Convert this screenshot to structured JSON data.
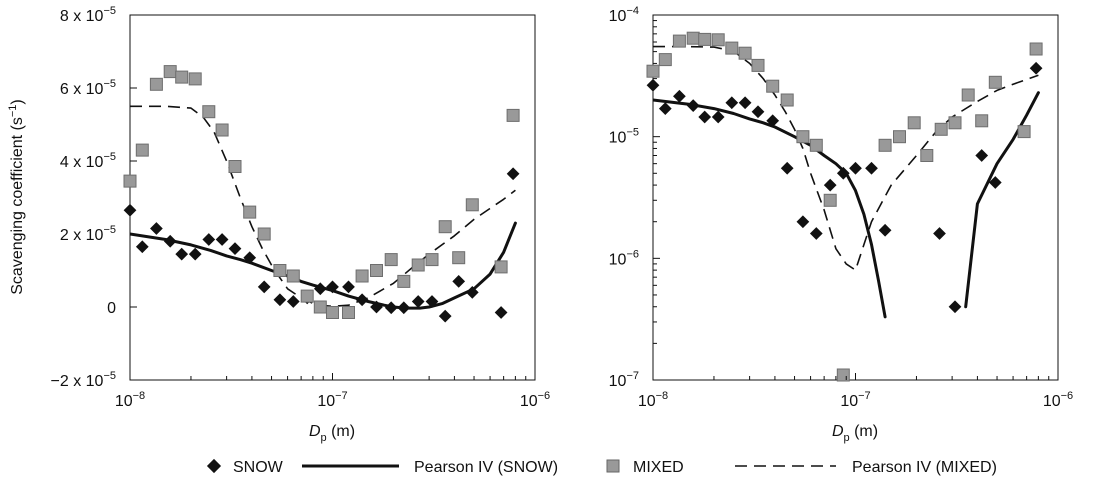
{
  "chart_data": [
    {
      "type": "scatter",
      "panel": "left",
      "x_scale": "log",
      "y_scale": "linear",
      "xlim": [
        1e-08,
        1e-06
      ],
      "ylim": [
        -2e-05,
        8e-05
      ],
      "grid": false,
      "ylabel_main": "Scavenging coefficient (s",
      "ylabel_sup": "−1",
      "ylabel_end": ")",
      "xlabel_main": "D",
      "xlabel_sub": "p",
      "xlabel_end": " (m)",
      "x_ticks": [
        {
          "value": 1e-08,
          "base": "10",
          "exp": "−8"
        },
        {
          "value": 1e-07,
          "base": "10",
          "exp": "−7"
        },
        {
          "value": 1e-06,
          "base": "10",
          "exp": "−6"
        }
      ],
      "y_ticks": [
        {
          "value": 8e-05,
          "base": "8 x 10",
          "exp": "−5"
        },
        {
          "value": 6e-05,
          "base": "6 x 10",
          "exp": "−5"
        },
        {
          "value": 4e-05,
          "base": "4 x 10",
          "exp": "−5"
        },
        {
          "value": 2e-05,
          "base": "2 x 10",
          "exp": "−5"
        },
        {
          "value": 0,
          "base": "0",
          "exp": ""
        },
        {
          "value": -2e-05,
          "base": "−2 x 10",
          "exp": "−5"
        }
      ],
      "series": [
        {
          "name": "SNOW",
          "kind": "markers",
          "marker": "diamond",
          "color": "#111111",
          "x": [
            1e-08,
            1.15e-08,
            1.35e-08,
            1.58e-08,
            1.8e-08,
            2.1e-08,
            2.45e-08,
            2.85e-08,
            3.3e-08,
            3.9e-08,
            4.6e-08,
            5.5e-08,
            6.4e-08,
            7.5e-08,
            8.7e-08,
            1e-07,
            1.2e-07,
            1.4e-07,
            1.65e-07,
            1.95e-07,
            2.25e-07,
            2.65e-07,
            3.1e-07,
            3.6e-07,
            4.2e-07,
            4.9e-07,
            6.8e-07,
            7.8e-07
          ],
          "y": [
            2.65e-05,
            1.65e-05,
            2.15e-05,
            1.8e-05,
            1.45e-05,
            1.45e-05,
            1.85e-05,
            1.85e-05,
            1.6e-05,
            1.35e-05,
            5.5e-06,
            2e-06,
            1.5e-06,
            2.5e-06,
            5e-06,
            5.5e-06,
            5.5e-06,
            2e-06,
            0,
            -2e-07,
            -2e-07,
            1.5e-06,
            1.5e-06,
            -2.5e-06,
            7e-06,
            4e-06,
            -1.5e-06,
            3.65e-05
          ]
        },
        {
          "name": "Pearson IV (SNOW)",
          "kind": "line",
          "style": "solid",
          "color": "#111111",
          "x": [
            1e-08,
            1.5e-08,
            2e-08,
            2.5e-08,
            3e-08,
            3.5e-08,
            4e-08,
            5e-08,
            6e-08,
            7e-08,
            8e-08,
            1e-07,
            1.2e-07,
            1.5e-07,
            1.8e-07,
            2e-07,
            2.3e-07,
            2.7e-07,
            3e-07,
            3.5e-07,
            4e-07,
            5e-07,
            6e-07,
            7e-07,
            8e-07
          ],
          "y": [
            2e-05,
            1.85e-05,
            1.7e-05,
            1.55e-05,
            1.4e-05,
            1.3e-05,
            1.2e-05,
            1e-05,
            8.5e-06,
            7e-06,
            6e-06,
            4.5e-06,
            3e-06,
            1.5e-06,
            5e-07,
            0,
            -3e-07,
            -3e-07,
            0,
            1e-06,
            2.5e-06,
            5e-06,
            9e-06,
            1.5e-05,
            2.3e-05
          ]
        },
        {
          "name": "MIXED",
          "kind": "markers",
          "marker": "square",
          "color": "#999999",
          "x": [
            1e-08,
            1.15e-08,
            1.35e-08,
            1.58e-08,
            1.8e-08,
            2.1e-08,
            2.45e-08,
            2.85e-08,
            3.3e-08,
            3.9e-08,
            4.6e-08,
            5.5e-08,
            6.4e-08,
            7.5e-08,
            8.7e-08,
            1e-07,
            1.2e-07,
            1.4e-07,
            1.65e-07,
            1.95e-07,
            2.25e-07,
            2.65e-07,
            3.1e-07,
            3.6e-07,
            4.2e-07,
            4.9e-07,
            6.8e-07,
            7.8e-07
          ],
          "y": [
            3.45e-05,
            4.3e-05,
            6.1e-05,
            6.45e-05,
            6.3e-05,
            6.25e-05,
            5.35e-05,
            4.85e-05,
            3.85e-05,
            2.6e-05,
            2e-05,
            1e-05,
            8.5e-06,
            3e-06,
            0,
            -1.5e-06,
            -1.5e-06,
            8.5e-06,
            1e-05,
            1.3e-05,
            7e-06,
            1.15e-05,
            1.3e-05,
            2.2e-05,
            1.35e-05,
            2.8e-05,
            1.1e-05,
            5.25e-05
          ]
        },
        {
          "name": "Pearson IV (MIXED)",
          "kind": "line",
          "style": "dashed",
          "color": "#111111",
          "x": [
            1e-08,
            1.5e-08,
            2e-08,
            2.3e-08,
            2.6e-08,
            3e-08,
            3.5e-08,
            4e-08,
            4.5e-08,
            5e-08,
            5.5e-08,
            6e-08,
            7e-08,
            8e-08,
            9e-08,
            1e-07,
            1.2e-07,
            1.5e-07,
            2e-07,
            2.5e-07,
            3e-07,
            4e-07,
            5e-07,
            6e-07,
            7e-07,
            8e-07
          ],
          "y": [
            5.5e-05,
            5.5e-05,
            5.45e-05,
            5.2e-05,
            4.8e-05,
            4e-05,
            3e-05,
            2.2e-05,
            1.6e-05,
            1.15e-05,
            8e-06,
            5e-06,
            2.5e-06,
            1e-06,
            4e-07,
            2e-07,
            5e-07,
            2.5e-06,
            6.5e-06,
            1.1e-05,
            1.45e-05,
            1.95e-05,
            2.4e-05,
            2.7e-05,
            2.95e-05,
            3.2e-05
          ]
        }
      ]
    },
    {
      "type": "scatter",
      "panel": "right",
      "x_scale": "log",
      "y_scale": "log",
      "xlim": [
        1e-08,
        1e-06
      ],
      "ylim": [
        1e-07,
        0.0001
      ],
      "grid": false,
      "xlabel_main": "D",
      "xlabel_sub": "p",
      "xlabel_end": " (m)",
      "x_ticks": [
        {
          "value": 1e-08,
          "base": "10",
          "exp": "−8"
        },
        {
          "value": 1e-07,
          "base": "10",
          "exp": "−7"
        },
        {
          "value": 1e-06,
          "base": "10",
          "exp": "−6"
        }
      ],
      "y_ticks": [
        {
          "value": 0.0001,
          "base": "10",
          "exp": "−4"
        },
        {
          "value": 1e-05,
          "base": "10",
          "exp": "−5"
        },
        {
          "value": 1e-06,
          "base": "10",
          "exp": "−6"
        },
        {
          "value": 1e-07,
          "base": "10",
          "exp": "−7"
        }
      ],
      "series": [
        {
          "name": "SNOW",
          "kind": "markers",
          "marker": "diamond",
          "color": "#111111",
          "x": [
            1e-08,
            1.15e-08,
            1.35e-08,
            1.58e-08,
            1.8e-08,
            2.1e-08,
            2.45e-08,
            2.85e-08,
            3.3e-08,
            3.9e-08,
            4.6e-08,
            5.5e-08,
            6.4e-08,
            7.5e-08,
            8.7e-08,
            1e-07,
            1.2e-07,
            1.4e-07,
            2.6e-07,
            3.1e-07,
            4.2e-07,
            4.9e-07,
            7.8e-07
          ],
          "y": [
            2.65e-05,
            1.7e-05,
            2.15e-05,
            1.8e-05,
            1.45e-05,
            1.45e-05,
            1.9e-05,
            1.9e-05,
            1.6e-05,
            1.35e-05,
            5.5e-06,
            2e-06,
            1.6e-06,
            4e-06,
            5e-06,
            5.5e-06,
            5.5e-06,
            1.7e-06,
            1.6e-06,
            4e-07,
            7e-06,
            4.2e-06,
            3.65e-05
          ]
        },
        {
          "name": "Pearson IV (SNOW)",
          "kind": "line",
          "style": "solid",
          "color": "#111111",
          "segments": [
            {
              "x": [
                1e-08,
                1.5e-08,
                2e-08,
                2.5e-08,
                3e-08,
                3.5e-08,
                4e-08,
                5e-08,
                6e-08,
                7e-08,
                8e-08,
                9e-08,
                1e-07,
                1.1e-07,
                1.2e-07,
                1.3e-07,
                1.4e-07
              ],
              "y": [
                2e-05,
                1.85e-05,
                1.7e-05,
                1.55e-05,
                1.4e-05,
                1.3e-05,
                1.2e-05,
                1e-05,
                8.5e-06,
                7e-06,
                6e-06,
                5e-06,
                3.6e-06,
                2.3e-06,
                1.3e-06,
                6.5e-07,
                3.3e-07
              ]
            },
            {
              "x": [
                3.5e-07,
                4e-07,
                5e-07,
                6e-07,
                7e-07,
                8e-07
              ],
              "y": [
                4e-07,
                2.8e-06,
                6e-06,
                9.5e-06,
                1.5e-05,
                2.3e-05
              ]
            }
          ]
        },
        {
          "name": "MIXED",
          "kind": "markers",
          "marker": "square",
          "color": "#999999",
          "x": [
            1e-08,
            1.15e-08,
            1.35e-08,
            1.58e-08,
            1.8e-08,
            2.1e-08,
            2.45e-08,
            2.85e-08,
            3.3e-08,
            3.9e-08,
            4.6e-08,
            5.5e-08,
            6.4e-08,
            7.5e-08,
            8.7e-08,
            1.4e-07,
            1.65e-07,
            1.95e-07,
            2.25e-07,
            2.65e-07,
            3.1e-07,
            3.6e-07,
            4.2e-07,
            4.9e-07,
            6.8e-07,
            7.8e-07
          ],
          "y": [
            3.45e-05,
            4.3e-05,
            6.1e-05,
            6.45e-05,
            6.3e-05,
            6.25e-05,
            5.35e-05,
            4.85e-05,
            3.85e-05,
            2.6e-05,
            2e-05,
            1e-05,
            8.5e-06,
            3e-06,
            1.1e-07,
            8.5e-06,
            1e-05,
            1.3e-05,
            7e-06,
            1.15e-05,
            1.3e-05,
            2.2e-05,
            1.35e-05,
            2.8e-05,
            1.1e-05,
            5.25e-05
          ]
        },
        {
          "name": "Pearson IV (MIXED)",
          "kind": "line",
          "style": "dashed",
          "color": "#111111",
          "x": [
            1e-08,
            1.5e-08,
            2e-08,
            2.3e-08,
            2.6e-08,
            3e-08,
            3.5e-08,
            4e-08,
            4.5e-08,
            5e-08,
            5.5e-08,
            6e-08,
            7e-08,
            8e-08,
            9e-08,
            1e-07,
            1.2e-07,
            1.5e-07,
            2e-07,
            2.5e-07,
            3e-07,
            4e-07,
            5e-07,
            6e-07,
            7e-07,
            8e-07
          ],
          "y": [
            5.5e-05,
            5.5e-05,
            5.45e-05,
            5.2e-05,
            4.8e-05,
            4e-05,
            3e-05,
            2.2e-05,
            1.6e-05,
            1.15e-05,
            8e-06,
            5e-06,
            2.5e-06,
            1.2e-06,
            9e-07,
            8e-07,
            2e-06,
            4e-06,
            7e-06,
            1.1e-05,
            1.45e-05,
            1.95e-05,
            2.4e-05,
            2.7e-05,
            2.95e-05,
            3.2e-05
          ]
        }
      ]
    }
  ],
  "legend": {
    "placement": "bottom",
    "items": [
      {
        "label": "SNOW",
        "symbol": "diamond"
      },
      {
        "label": "Pearson IV (SNOW)",
        "symbol": "solid-line"
      },
      {
        "label": "MIXED",
        "symbol": "square"
      },
      {
        "label": "Pearson IV (MIXED)",
        "symbol": "dashed-line"
      }
    ]
  }
}
